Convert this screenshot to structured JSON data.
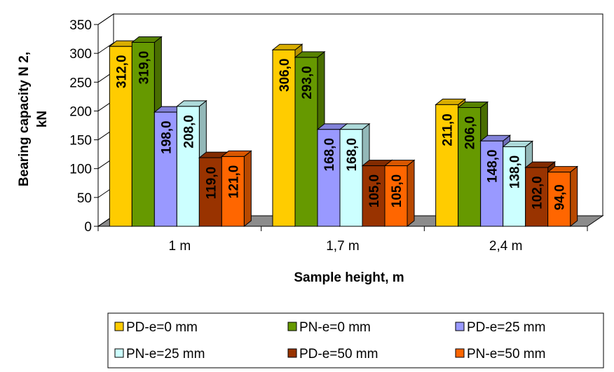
{
  "chart_data": {
    "type": "bar",
    "categories": [
      "1 m",
      "1,7 m",
      "2,4 m"
    ],
    "series": [
      {
        "name": "PD-e=0 mm",
        "values": [
          312.0,
          306.0,
          211.0
        ],
        "value_labels": [
          "312,0",
          "306,0",
          "211,0"
        ],
        "color": "#FFCC00"
      },
      {
        "name": "PN-e=0 mm",
        "values": [
          319.0,
          293.0,
          206.0
        ],
        "value_labels": [
          "319,0",
          "293,0",
          "206,0"
        ],
        "color": "#669900"
      },
      {
        "name": "PD-e=25 mm",
        "values": [
          198.0,
          168.0,
          148.0
        ],
        "value_labels": [
          "198,0",
          "168,0",
          "148,0"
        ],
        "color": "#9999FF"
      },
      {
        "name": "PN-e=25 mm",
        "values": [
          208.0,
          168.0,
          138.0
        ],
        "value_labels": [
          "208,0",
          "168,0",
          "138,0"
        ],
        "color": "#CCFFFF"
      },
      {
        "name": "PD-e=50 mm",
        "values": [
          119.0,
          105.0,
          102.0
        ],
        "value_labels": [
          "119,0",
          "105,0",
          "102,0"
        ],
        "color": "#993300"
      },
      {
        "name": "PN-e=50 mm",
        "values": [
          121.0,
          105.0,
          94.0
        ],
        "value_labels": [
          "121,0",
          "105,0",
          "94,0"
        ],
        "color": "#FF6600"
      }
    ],
    "xlabel": "Sample height, m",
    "ylabel_line1": "Bearing capacity N 2,",
    "ylabel_line2": "kN",
    "ylim": [
      0,
      350
    ],
    "yticks": [
      "0",
      "50",
      "100",
      "150",
      "200",
      "250",
      "300",
      "350"
    ],
    "legend_position": "bottom",
    "grid": false,
    "three_d": true
  }
}
